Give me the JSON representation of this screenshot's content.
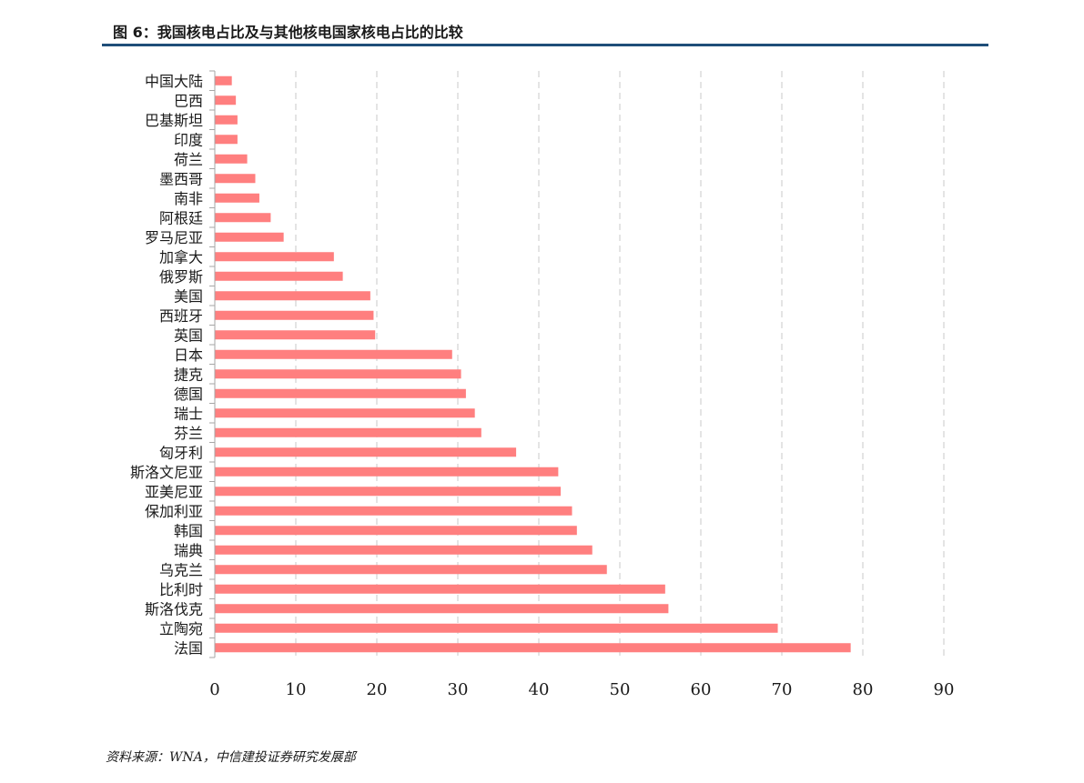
{
  "title": "图 6：我国核电占比及与其他核电国家核电占比的比较",
  "source": "资料来源：WNA，中信建投证券研究发展部",
  "colors": {
    "bar": "#ff7f7f",
    "title_rule": "#1f4e79",
    "grid": "#c8c8c8",
    "axis": "#a6a6a6"
  },
  "chart_data": {
    "type": "bar",
    "orientation": "horizontal",
    "categories": [
      "中国大陆",
      "巴西",
      "巴基斯坦",
      "印度",
      "荷兰",
      "墨西哥",
      "南非",
      "阿根廷",
      "罗马尼亚",
      "加拿大",
      "俄罗斯",
      "美国",
      "西班牙",
      "英国",
      "日本",
      "捷克",
      "德国",
      "瑞士",
      "芬兰",
      "匈牙利",
      "斯洛文尼亚",
      "亚美尼亚",
      "保加利亚",
      "韩国",
      "瑞典",
      "乌克兰",
      "比利时",
      "斯洛伐克",
      "立陶宛",
      "法国"
    ],
    "values": [
      2.1,
      2.6,
      2.8,
      2.8,
      4.0,
      5.0,
      5.5,
      6.9,
      8.5,
      14.7,
      15.8,
      19.2,
      19.6,
      19.8,
      29.3,
      30.4,
      31.0,
      32.1,
      32.9,
      37.2,
      42.4,
      42.7,
      44.1,
      44.7,
      46.6,
      48.4,
      55.6,
      56.0,
      69.5,
      78.5
    ],
    "xlim": [
      0,
      90
    ],
    "xticks": [
      "0",
      "10",
      "20",
      "30",
      "40",
      "50",
      "60",
      "70",
      "80",
      "90"
    ],
    "grid": "vertical-dashed",
    "legend": "none"
  }
}
